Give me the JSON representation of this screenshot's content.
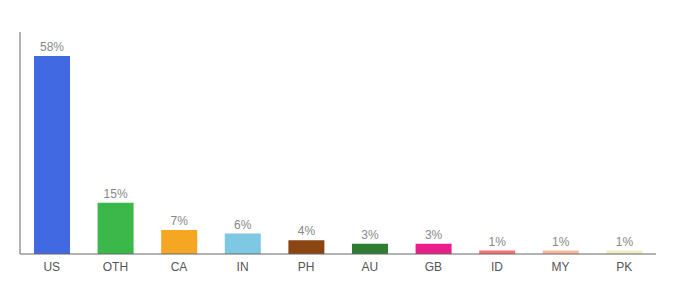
{
  "chart_data": {
    "type": "bar",
    "categories": [
      "US",
      "OTH",
      "CA",
      "IN",
      "PH",
      "AU",
      "GB",
      "ID",
      "MY",
      "PK"
    ],
    "values": [
      58,
      15,
      7,
      6,
      4,
      3,
      3,
      1,
      1,
      1
    ],
    "value_labels": [
      "58%",
      "15%",
      "7%",
      "6%",
      "4%",
      "3%",
      "3%",
      "1%",
      "1%",
      "1%"
    ],
    "colors": [
      "#4169e1",
      "#3cb84a",
      "#f5a623",
      "#7ec8e3",
      "#8b4513",
      "#2e7d32",
      "#e91e8c",
      "#ff7070",
      "#ffb6a0",
      "#f0f0c0"
    ],
    "ylim": [
      0,
      65
    ],
    "data_labels": true,
    "tick_labels": "x"
  }
}
